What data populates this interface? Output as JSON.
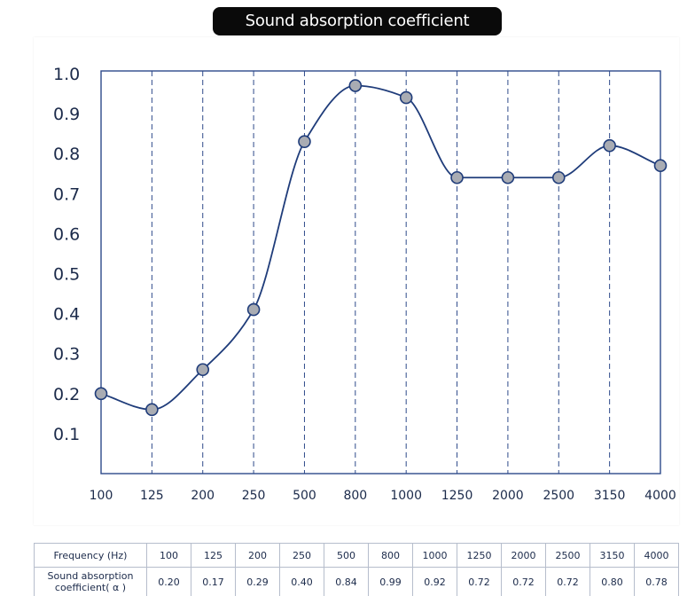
{
  "title": "Sound absorption coefficient",
  "colors": {
    "title_bg": "#0a0a0a",
    "title_text": "#ffffff",
    "axis": "#2e4a8a",
    "curve": "#1f3c7a",
    "marker_fill": "#a9acb3",
    "marker_stroke": "#1f3c7a",
    "text": "#1b2a4a",
    "table_border": "#b6bdcc"
  },
  "chart_data": {
    "type": "line",
    "title": "Sound absorption coefficient",
    "xlabel": "",
    "ylabel": "",
    "categories": [
      "100",
      "125",
      "200",
      "250",
      "500",
      "800",
      "1000",
      "1250",
      "2000",
      "2500",
      "3150",
      "4000"
    ],
    "series": [
      {
        "values": [
          0.2,
          0.17,
          0.29,
          0.4,
          0.84,
          0.99,
          0.92,
          0.72,
          0.72,
          0.72,
          0.8,
          0.78
        ]
      }
    ],
    "plotted_values": [
      0.2,
      0.16,
      0.26,
      0.41,
      0.83,
      0.97,
      0.94,
      0.74,
      0.74,
      0.74,
      0.82,
      0.77
    ],
    "yticks": [
      "0.1",
      "0.2",
      "0.3",
      "0.4",
      "0.5",
      "0.6",
      "0.7",
      "0.8",
      "0.9",
      "1.0"
    ],
    "ytick_values": [
      0.1,
      0.2,
      0.3,
      0.4,
      0.5,
      0.6,
      0.7,
      0.8,
      0.9,
      1.0
    ],
    "ylim": [
      0.0,
      1.0
    ],
    "grid": "vertical dashed lines at each frequency",
    "legend": "none"
  },
  "table": {
    "row1_header": "Frequency (Hz)",
    "row2_header": "Sound absorption coefficient( α )",
    "frequencies": [
      "100",
      "125",
      "200",
      "250",
      "500",
      "800",
      "1000",
      "1250",
      "2000",
      "2500",
      "3150",
      "4000"
    ],
    "coefficients": [
      "0.20",
      "0.17",
      "0.29",
      "0.40",
      "0.84",
      "0.99",
      "0.92",
      "0.72",
      "0.72",
      "0.72",
      "0.80",
      "0.78"
    ]
  }
}
